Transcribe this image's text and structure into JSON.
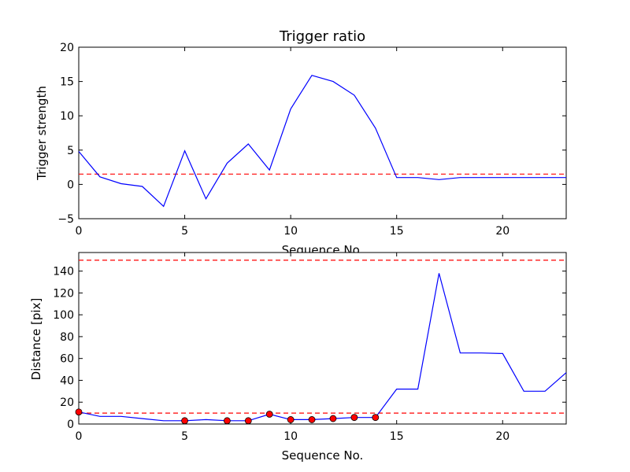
{
  "chart_data": [
    {
      "type": "line",
      "title": "Trigger ratio",
      "xlabel": "Sequence No.",
      "ylabel": "Trigger strength",
      "xlim": [
        0,
        23
      ],
      "ylim": [
        -5,
        20
      ],
      "xticks": [
        0,
        5,
        10,
        15,
        20
      ],
      "yticks": [
        -5,
        0,
        5,
        10,
        15,
        20
      ],
      "grid": false,
      "series": [
        {
          "color": "#0000ff",
          "x": [
            0,
            1,
            2,
            3,
            4,
            5,
            6,
            7,
            8,
            9,
            10,
            11,
            12,
            13,
            14,
            15,
            16,
            17,
            18,
            19,
            20,
            21,
            22,
            23
          ],
          "y": [
            4.8,
            1.1,
            0.1,
            -0.3,
            -3.2,
            4.9,
            -2.1,
            3.1,
            5.9,
            2.1,
            11.0,
            15.9,
            15.0,
            13.0,
            8.2,
            1.0,
            1.0,
            0.7,
            1.0,
            1.0,
            1.0,
            1.0,
            1.0,
            1.0
          ]
        }
      ],
      "hlines": [
        {
          "y": 1.5,
          "color": "#ff0000",
          "style": "dashed"
        }
      ]
    },
    {
      "type": "line",
      "title": "",
      "xlabel": "Sequence No.",
      "ylabel": "Distance [pix]",
      "xlim": [
        0,
        23
      ],
      "ylim": [
        0,
        157
      ],
      "xticks": [
        0,
        5,
        10,
        15,
        20
      ],
      "yticks": [
        0,
        20,
        40,
        60,
        80,
        100,
        120,
        140
      ],
      "grid": false,
      "series": [
        {
          "color": "#0000ff",
          "x": [
            0,
            1,
            2,
            3,
            4,
            5,
            6,
            7,
            8,
            9,
            10,
            11,
            12,
            13,
            14,
            15,
            16,
            17,
            18,
            19,
            20,
            21,
            22,
            23
          ],
          "y": [
            11,
            7,
            7,
            5,
            3,
            3,
            4,
            3,
            3,
            9,
            4,
            4,
            5,
            6,
            6,
            32,
            32,
            138,
            65,
            65,
            64.5,
            30,
            30,
            47
          ]
        }
      ],
      "markers": {
        "color": "#ff0000",
        "x": [
          0,
          5,
          7,
          8,
          9,
          10,
          11,
          12,
          13,
          14
        ],
        "y": [
          11,
          3,
          3,
          3,
          9,
          4,
          4,
          5,
          6,
          6
        ]
      },
      "hlines": [
        {
          "y": 150,
          "color": "#ff0000",
          "style": "dashed"
        },
        {
          "y": 10,
          "color": "#ff0000",
          "style": "dashed"
        }
      ]
    }
  ]
}
